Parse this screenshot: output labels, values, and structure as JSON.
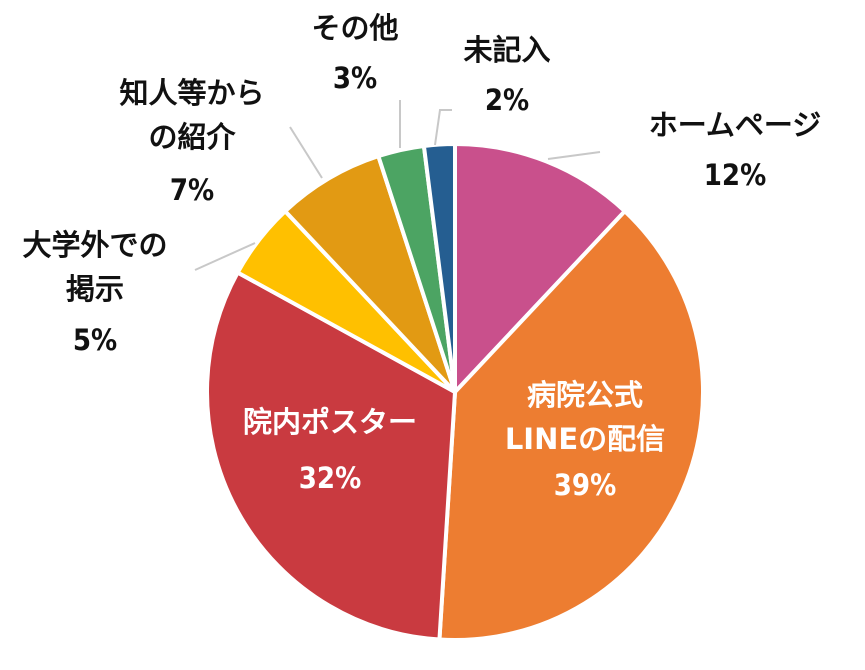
{
  "chart_data": {
    "type": "pie",
    "title": "",
    "start_angle_deg": 0,
    "direction": "clockwise",
    "slices": [
      {
        "lines": [
          "ホームページ"
        ],
        "value_label": "12%",
        "value": 12,
        "color": "#C9508C",
        "label_style": "outside"
      },
      {
        "lines": [
          "病院公式",
          "LINEの配信"
        ],
        "value_label": "39%",
        "value": 39,
        "color": "#ED7D31",
        "label_style": "inside"
      },
      {
        "lines": [
          "院内ポスター"
        ],
        "value_label": "32%",
        "value": 32,
        "color": "#C93A40",
        "label_style": "inside"
      },
      {
        "lines": [
          "大学外での",
          "掲示"
        ],
        "value_label": "5%",
        "value": 5,
        "color": "#FFC000",
        "label_style": "outside"
      },
      {
        "lines": [
          "知人等から",
          "の紹介"
        ],
        "value_label": "7%",
        "value": 7,
        "color": "#E29A13",
        "label_style": "outside"
      },
      {
        "lines": [
          "その他"
        ],
        "value_label": "3%",
        "value": 3,
        "color": "#4CA463",
        "label_style": "outside"
      },
      {
        "lines": [
          "未記入"
        ],
        "value_label": "2%",
        "value": 2,
        "color": "#255E91",
        "label_style": "outside"
      }
    ]
  }
}
